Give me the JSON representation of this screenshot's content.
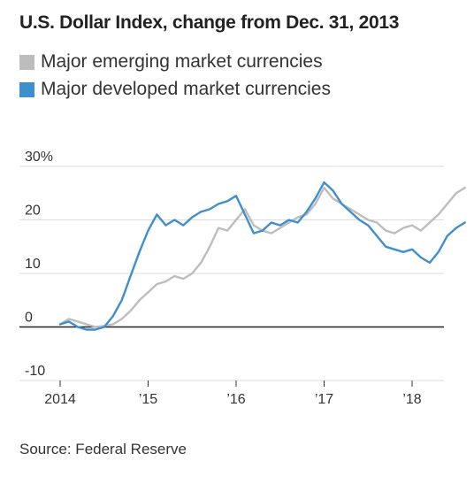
{
  "chart_data": {
    "type": "line",
    "title": "U.S. Dollar Index, change from Dec. 31, 2013",
    "xlabel": "",
    "ylabel": "",
    "xlim": [
      2014.0,
      2018.65
    ],
    "ylim": [
      -10,
      30
    ],
    "y_ticks": [
      30,
      20,
      10,
      0,
      -10
    ],
    "y_tick_labels": [
      "30%",
      "20",
      "10",
      "0",
      "-10"
    ],
    "x_ticks": [
      2014,
      2015,
      2016,
      2017,
      2018
    ],
    "x_tick_labels": [
      "2014",
      "’15",
      "’16",
      "’17",
      "’18"
    ],
    "grid": true,
    "legend_position": "top-left",
    "series": [
      {
        "name": "Major emerging market currencies",
        "color": "#bdbdbd",
        "x": [
          2014.0,
          2014.1,
          2014.2,
          2014.3,
          2014.4,
          2014.5,
          2014.6,
          2014.7,
          2014.8,
          2014.9,
          2015.0,
          2015.1,
          2015.2,
          2015.3,
          2015.4,
          2015.5,
          2015.6,
          2015.7,
          2015.8,
          2015.9,
          2016.0,
          2016.1,
          2016.2,
          2016.3,
          2016.4,
          2016.5,
          2016.6,
          2016.7,
          2016.8,
          2016.9,
          2017.0,
          2017.1,
          2017.2,
          2017.3,
          2017.4,
          2017.5,
          2017.6,
          2017.7,
          2017.8,
          2017.9,
          2018.0,
          2018.1,
          2018.2,
          2018.3,
          2018.4,
          2018.5,
          2018.6
        ],
        "values": [
          0.5,
          1.5,
          1.0,
          0.5,
          0.0,
          0.2,
          0.5,
          1.5,
          3.0,
          5.0,
          6.5,
          8.0,
          8.5,
          9.5,
          9.0,
          10.0,
          12.0,
          15.0,
          18.5,
          18.0,
          20.0,
          22.0,
          19.0,
          18.0,
          17.5,
          18.5,
          19.5,
          20.5,
          21.0,
          23.0,
          26.0,
          24.0,
          23.0,
          22.0,
          21.0,
          20.0,
          19.5,
          18.0,
          17.5,
          18.5,
          19.0,
          18.0,
          19.5,
          21.0,
          23.0,
          25.0,
          26.0
        ]
      },
      {
        "name": "Major developed market currencies",
        "color": "#3f8fcf",
        "x": [
          2014.0,
          2014.1,
          2014.2,
          2014.3,
          2014.4,
          2014.5,
          2014.6,
          2014.7,
          2014.8,
          2014.9,
          2015.0,
          2015.1,
          2015.2,
          2015.3,
          2015.4,
          2015.5,
          2015.6,
          2015.7,
          2015.8,
          2015.9,
          2016.0,
          2016.1,
          2016.2,
          2016.3,
          2016.4,
          2016.5,
          2016.6,
          2016.7,
          2016.8,
          2016.9,
          2017.0,
          2017.1,
          2017.2,
          2017.3,
          2017.4,
          2017.5,
          2017.6,
          2017.7,
          2017.8,
          2017.9,
          2018.0,
          2018.1,
          2018.2,
          2018.3,
          2018.4,
          2018.5,
          2018.6
        ],
        "values": [
          0.5,
          1.0,
          0.0,
          -0.5,
          -0.5,
          0.0,
          2.0,
          5.0,
          9.5,
          14.0,
          18.0,
          21.0,
          19.0,
          20.0,
          19.0,
          20.5,
          21.5,
          22.0,
          23.0,
          23.5,
          24.5,
          21.0,
          17.5,
          18.0,
          19.5,
          19.0,
          20.0,
          19.5,
          21.5,
          24.0,
          27.0,
          25.5,
          23.0,
          21.5,
          20.0,
          19.0,
          17.0,
          15.0,
          14.5,
          14.0,
          14.5,
          13.0,
          12.0,
          14.0,
          17.0,
          18.5,
          19.5
        ]
      }
    ]
  },
  "source": "Source: Federal Reserve"
}
